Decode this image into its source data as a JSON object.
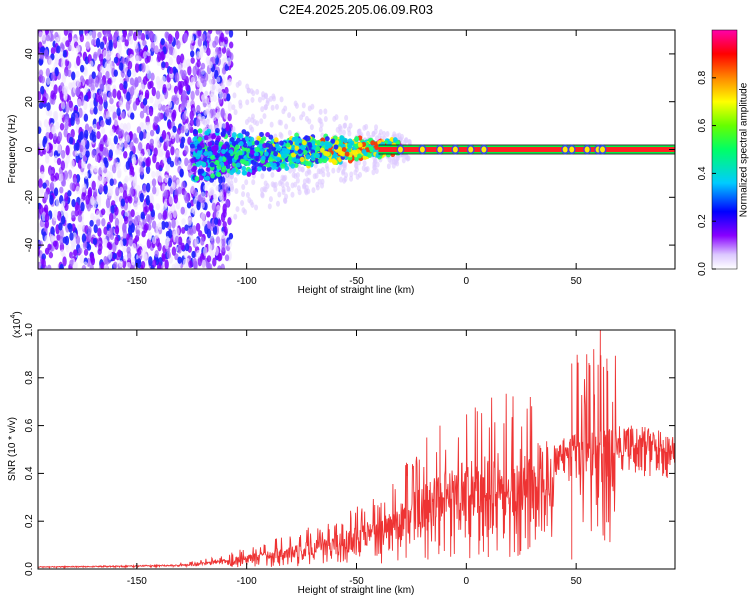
{
  "figure": {
    "title": "C2E4.2025.205.06.09.R03"
  },
  "chart_data": [
    {
      "type": "heatmap",
      "xlabel": "Height of straight line (km)",
      "ylabel": "Frequency (Hz)",
      "xlim": [
        -195,
        95
      ],
      "ylim": [
        -50,
        50
      ],
      "xticks": [
        -150,
        -100,
        -50,
        0,
        50
      ],
      "yticks": [
        -40,
        -20,
        0,
        20,
        40
      ],
      "grid": false,
      "colorbar": {
        "label": "Normalized spectral amplitude",
        "range": [
          0.0,
          1.0
        ],
        "ticks": [
          "0.0",
          "0.2",
          "0.4",
          "0.6",
          "0.8"
        ],
        "colormap": [
          "#ffffff",
          "#8800ff",
          "#0000ff",
          "#00ddff",
          "#00ff00",
          "#ffff00",
          "#ff0000",
          "#ff00aa"
        ]
      },
      "features": {
        "carrier_frequency_hz": 0,
        "carrier_visible_from_km": -40,
        "noise_region_km": [
          -195,
          -115
        ],
        "transition_region_km": [
          -125,
          -30
        ]
      }
    },
    {
      "type": "line",
      "xlabel": "Height of straight line (km)",
      "ylabel": "SNR (10 * v/v)",
      "y_scale_label": "(x10",
      "y_scale_exponent": "4",
      "xlim": [
        -195,
        95
      ],
      "ylim": [
        0.0,
        1.0
      ],
      "xticks": [
        -150,
        -100,
        -50,
        0,
        50
      ],
      "yticks": [
        "0.0",
        "0.2",
        "0.4",
        "0.6",
        "0.8",
        "1.0"
      ],
      "grid": false,
      "series": [
        {
          "color": "#ee3333",
          "envelope": {
            "x": [
              -195,
              -150,
              -125,
              -110,
              -100,
              -90,
              -80,
              -70,
              -60,
              -50,
              -40,
              -30,
              -20,
              -10,
              0,
              10,
              20,
              30,
              40,
              50,
              60,
              70,
              80,
              95
            ],
            "y": [
              0.01,
              0.015,
              0.02,
              0.04,
              0.06,
              0.08,
              0.1,
              0.12,
              0.14,
              0.18,
              0.22,
              0.28,
              0.35,
              0.42,
              0.45,
              0.48,
              0.5,
              0.52,
              0.55,
              0.57,
              0.58,
              0.6,
              0.6,
              0.57
            ]
          },
          "spikes": [
            {
              "x": -18,
              "y": 0.55
            },
            {
              "x": -12,
              "y": 0.6
            },
            {
              "x": 5,
              "y": 0.66
            },
            {
              "x": 10,
              "y": 0.05
            },
            {
              "x": 48,
              "y": 0.04
            },
            {
              "x": 48,
              "y": 0.86
            },
            {
              "x": 58,
              "y": 0.92
            },
            {
              "x": 61,
              "y": 1.0
            },
            {
              "x": 63,
              "y": 0.12
            },
            {
              "x": 64,
              "y": 0.88
            }
          ]
        }
      ]
    }
  ]
}
